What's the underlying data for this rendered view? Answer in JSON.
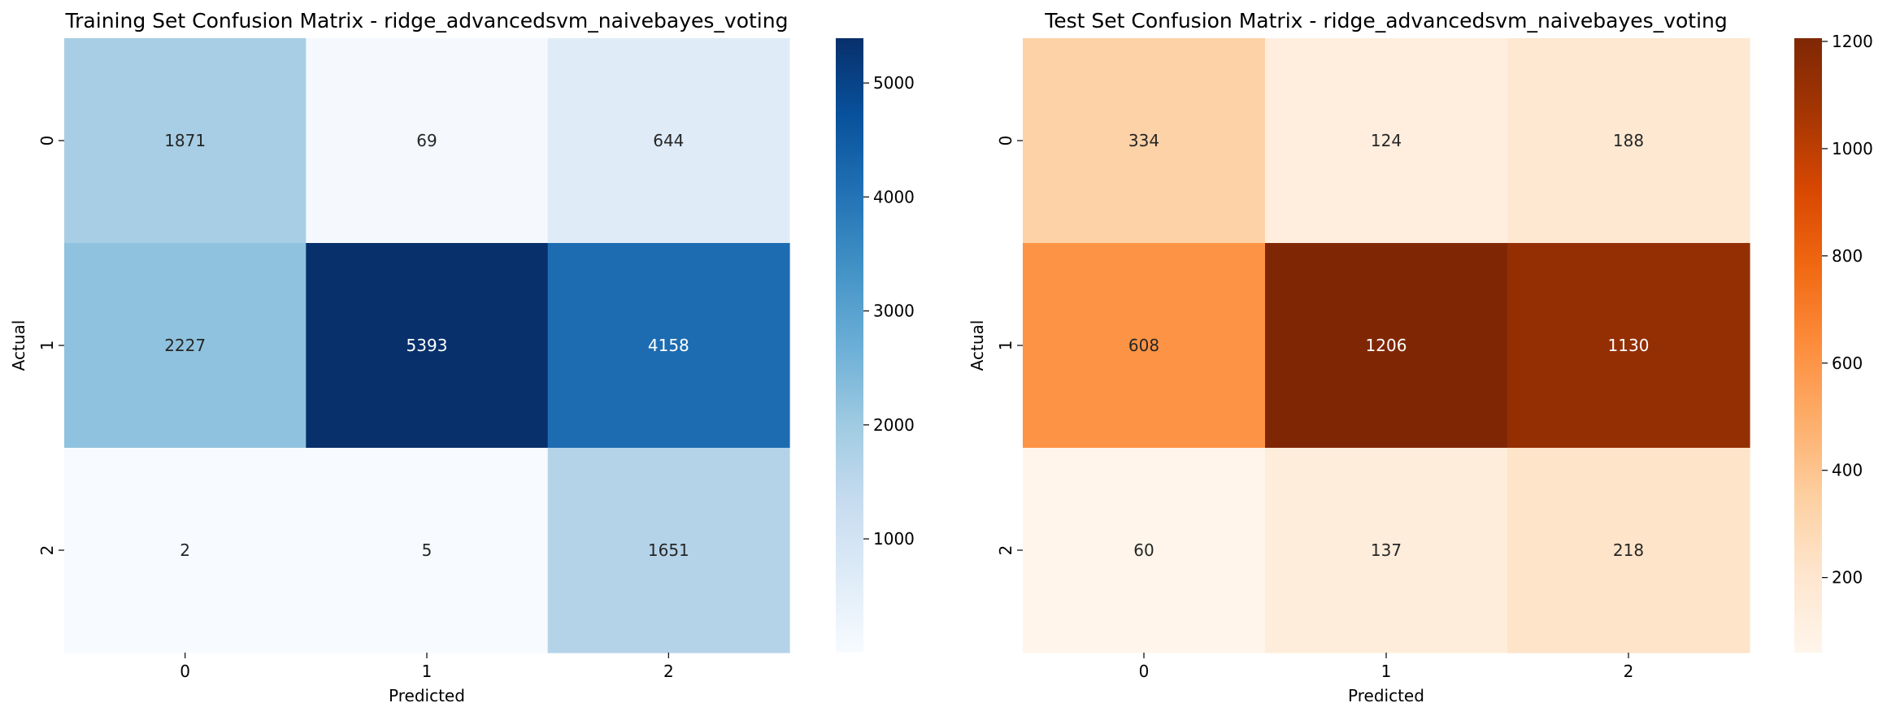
{
  "chart_data": [
    {
      "type": "heatmap",
      "title": "Training Set Confusion Matrix - ridge_advancedsvm_naivebayes_voting",
      "xlabel": "Predicted",
      "ylabel": "Actual",
      "x_categories": [
        "0",
        "1",
        "2"
      ],
      "y_categories": [
        "0",
        "1",
        "2"
      ],
      "values": [
        [
          1871,
          69,
          644
        ],
        [
          2227,
          5393,
          4158
        ],
        [
          2,
          5,
          1651
        ]
      ],
      "colormap": "Blues",
      "color_stops": [
        "#f7fbff",
        "#deebf7",
        "#c6dbef",
        "#9ecae1",
        "#6baed6",
        "#4292c6",
        "#2171b5",
        "#08519c",
        "#08306b"
      ],
      "colorbar_ticks": [
        "1000",
        "2000",
        "3000",
        "4000",
        "5000"
      ],
      "colorbar_range": [
        2,
        5393
      ],
      "grid": false,
      "legend": "colorbar-right"
    },
    {
      "type": "heatmap",
      "title": "Test Set Confusion Matrix - ridge_advancedsvm_naivebayes_voting",
      "xlabel": "Predicted",
      "ylabel": "Actual",
      "x_categories": [
        "0",
        "1",
        "2"
      ],
      "y_categories": [
        "0",
        "1",
        "2"
      ],
      "values": [
        [
          334,
          124,
          188
        ],
        [
          608,
          1206,
          1130
        ],
        [
          60,
          137,
          218
        ]
      ],
      "colormap": "Oranges",
      "color_stops": [
        "#fff5eb",
        "#fee6ce",
        "#fdd0a2",
        "#fdae6b",
        "#fd8d3c",
        "#f16913",
        "#d94801",
        "#a63603",
        "#7f2704"
      ],
      "colorbar_ticks": [
        "200",
        "400",
        "600",
        "800",
        "1000",
        "1200"
      ],
      "colorbar_range": [
        60,
        1206
      ],
      "grid": false,
      "legend": "colorbar-right"
    }
  ]
}
